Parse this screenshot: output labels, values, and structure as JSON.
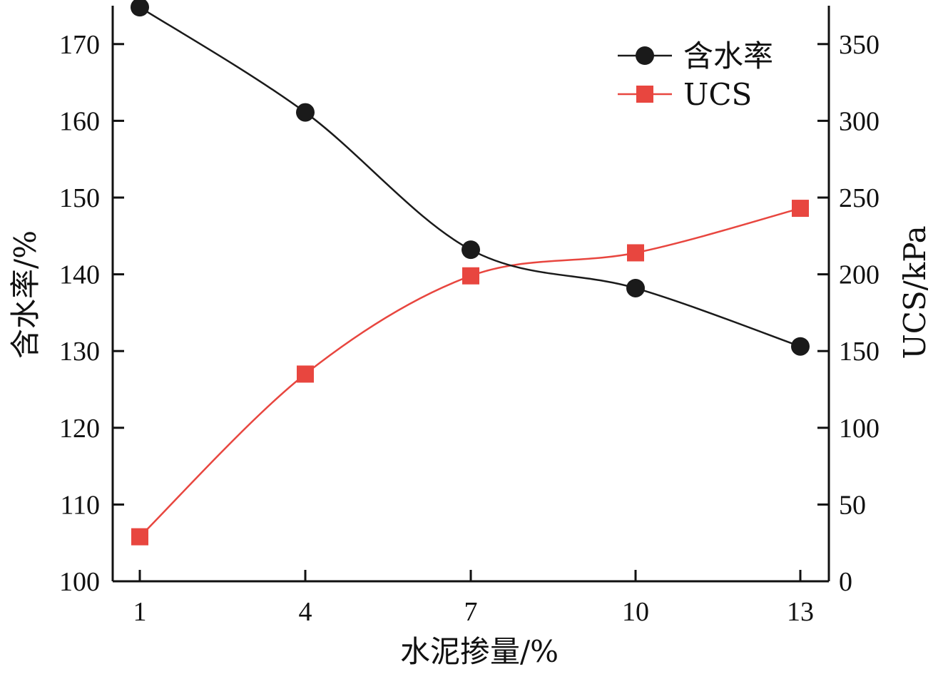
{
  "chart_data": {
    "type": "line",
    "xlabel": "水泥掺量/%",
    "ylabel": "含水率/%",
    "y2label": "UCS/kPa",
    "x": [
      1,
      4,
      7,
      10,
      13
    ],
    "xticks": [
      "1",
      "4",
      "7",
      "10",
      "13"
    ],
    "ylim": [
      100,
      175
    ],
    "yticks": [
      "100",
      "110",
      "120",
      "130",
      "140",
      "150",
      "160",
      "170"
    ],
    "y2lim": [
      0,
      375
    ],
    "y2ticks": [
      "0",
      "50",
      "100",
      "150",
      "200",
      "250",
      "300",
      "350"
    ],
    "legend_position": "top-right",
    "series": [
      {
        "name": "含水率",
        "axis": "left",
        "marker": "circle",
        "color": "#1a1a1a",
        "values": [
          174.8,
          161.1,
          143.2,
          138.2,
          130.6
        ]
      },
      {
        "name": "UCS",
        "axis": "right",
        "marker": "square",
        "color": "#e8463f",
        "values": [
          29,
          135,
          199,
          214,
          243
        ]
      }
    ]
  }
}
